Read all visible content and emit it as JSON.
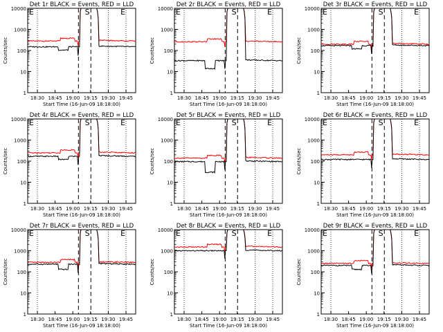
{
  "figure": {
    "colors": {
      "events": "#000000",
      "lld": "#ff0000",
      "axes": "#000000"
    },
    "ylabel": "Counts/sec",
    "xlabel": "Start Time (16-Jun-09 18:18:00)",
    "ylim": [
      1,
      10000
    ],
    "y_scale": "log",
    "y_tick_labels": [
      "1",
      "10",
      "100",
      "1000",
      "10000"
    ],
    "x_tick_labels": [
      "18:30",
      "18:45",
      "19:00",
      "19:15",
      "19:30",
      "19:45"
    ],
    "range_letters": [
      "S",
      "E",
      "E",
      "S",
      "E"
    ]
  },
  "chart_data": [
    {
      "type": "line",
      "title": "Det 1r BLACK = Events, RED = LLD",
      "events_level": 150,
      "lld_level": 280,
      "dip_events": 105,
      "event_dip": true
    },
    {
      "type": "line",
      "title": "Det 2r BLACK = Events, RED = LLD",
      "events_level": 33,
      "lld_level": 260,
      "dip_events": 14,
      "event_dip": true
    },
    {
      "type": "line",
      "title": "Det 3r BLACK = Events, RED = LLD",
      "events_level": 170,
      "lld_level": 200,
      "dip_events": 120,
      "event_dip": true
    },
    {
      "type": "line",
      "title": "Det 4r BLACK = Events, RED = LLD",
      "events_level": 170,
      "lld_level": 250,
      "dip_events": 120,
      "event_dip": true
    },
    {
      "type": "line",
      "title": "Det 5r BLACK = Events, RED = LLD",
      "events_level": 95,
      "lld_level": 140,
      "dip_events": 30,
      "event_dip": true
    },
    {
      "type": "line",
      "title": "Det 6r BLACK = Events, RED = LLD",
      "events_level": 120,
      "lld_level": 200,
      "dip_events": 100,
      "event_dip": false
    },
    {
      "type": "line",
      "title": "Det 7r BLACK = Events, RED = LLD",
      "events_level": 230,
      "lld_level": 280,
      "dip_events": 130,
      "event_dip": true
    },
    {
      "type": "line",
      "title": "Det 8r BLACK = Events, RED = LLD",
      "events_level": 1000,
      "lld_level": 1500,
      "dip_events": 700,
      "event_dip": false
    },
    {
      "type": "line",
      "title": "Det 9r BLACK = Events, RED = LLD",
      "events_level": 200,
      "lld_level": 250,
      "dip_events": 130,
      "event_dip": true
    }
  ]
}
